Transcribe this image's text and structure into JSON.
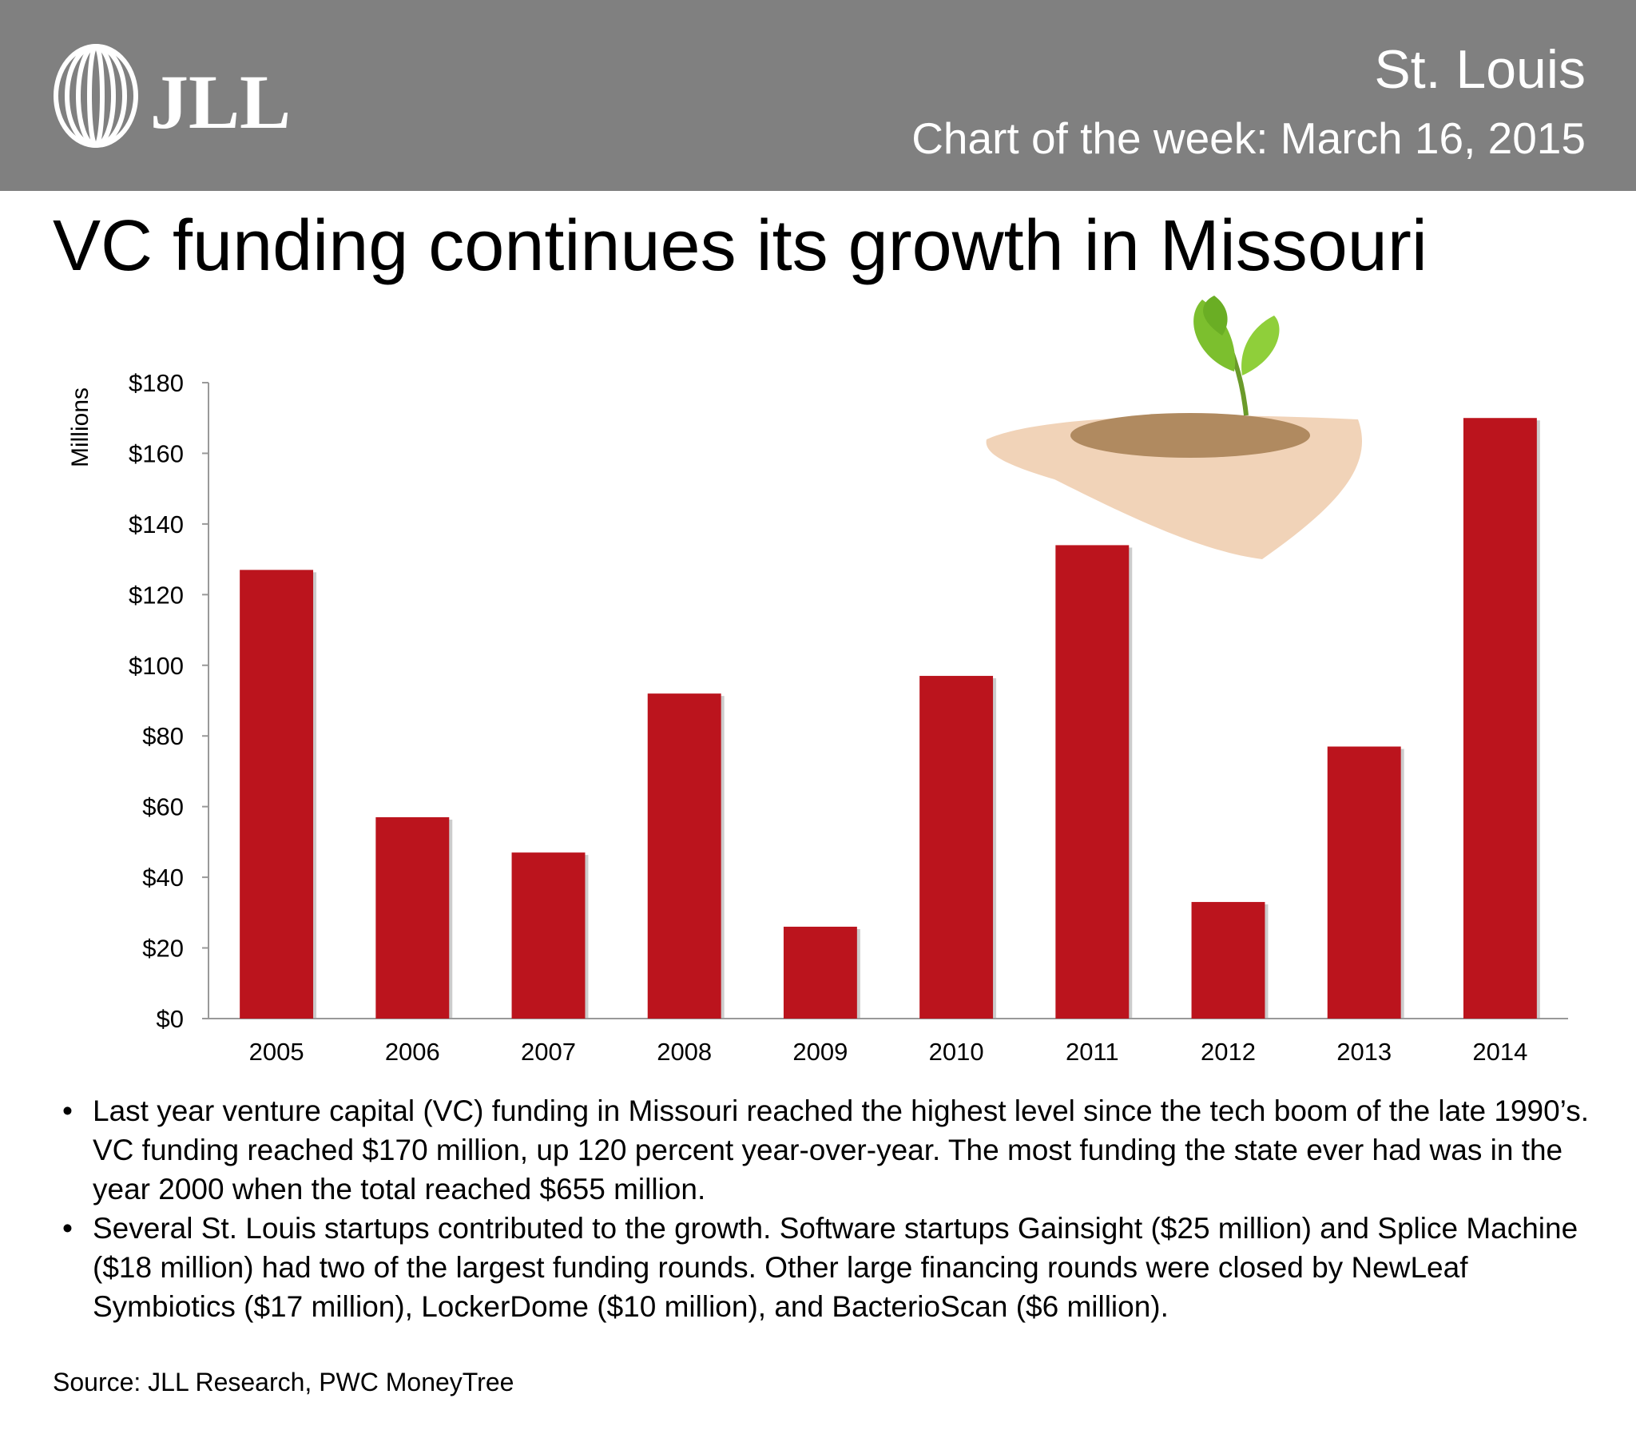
{
  "header": {
    "logo": "JLL",
    "location": "St. Louis",
    "subtitle": "Chart of the week: March 16, 2015"
  },
  "chart_data": {
    "type": "bar",
    "title": "VC funding continues its growth in Missouri",
    "y_axis_label": "Millions",
    "categories": [
      "2005",
      "2006",
      "2007",
      "2008",
      "2009",
      "2010",
      "2011",
      "2012",
      "2013",
      "2014"
    ],
    "values": [
      127,
      57,
      47,
      92,
      26,
      97,
      134,
      33,
      77,
      170
    ],
    "color": "#bb141d",
    "ylim": [
      0,
      180
    ],
    "yticks": [
      {
        "value": 0,
        "label": "$0"
      },
      {
        "value": 20,
        "label": "$20"
      },
      {
        "value": 40,
        "label": "$40"
      },
      {
        "value": 60,
        "label": "$60"
      },
      {
        "value": 80,
        "label": "$80"
      },
      {
        "value": 100,
        "label": "$100"
      },
      {
        "value": 120,
        "label": "$120"
      },
      {
        "value": 140,
        "label": "$140"
      },
      {
        "value": 160,
        "label": "$160"
      },
      {
        "value": 180,
        "label": "$180"
      }
    ],
    "grid": false
  },
  "bullets": [
    "Last year venture capital (VC) funding in Missouri reached the highest level since the tech boom of the late 1990’s. VC funding reached $170 million, up 120 percent year-over-year. The most funding the state ever had was in the year 2000 when the total reached $655 million.",
    "Several St. Louis startups contributed to the growth. Software startups Gainsight ($25 million) and Splice Machine ($18 million) had two of the largest funding rounds. Other large financing rounds were closed by NewLeaf Symbiotics ($17 million), LockerDome ($10 million), and BacterioScan ($6 million)."
  ],
  "source": "Source: JLL Research, PWC MoneyTree"
}
